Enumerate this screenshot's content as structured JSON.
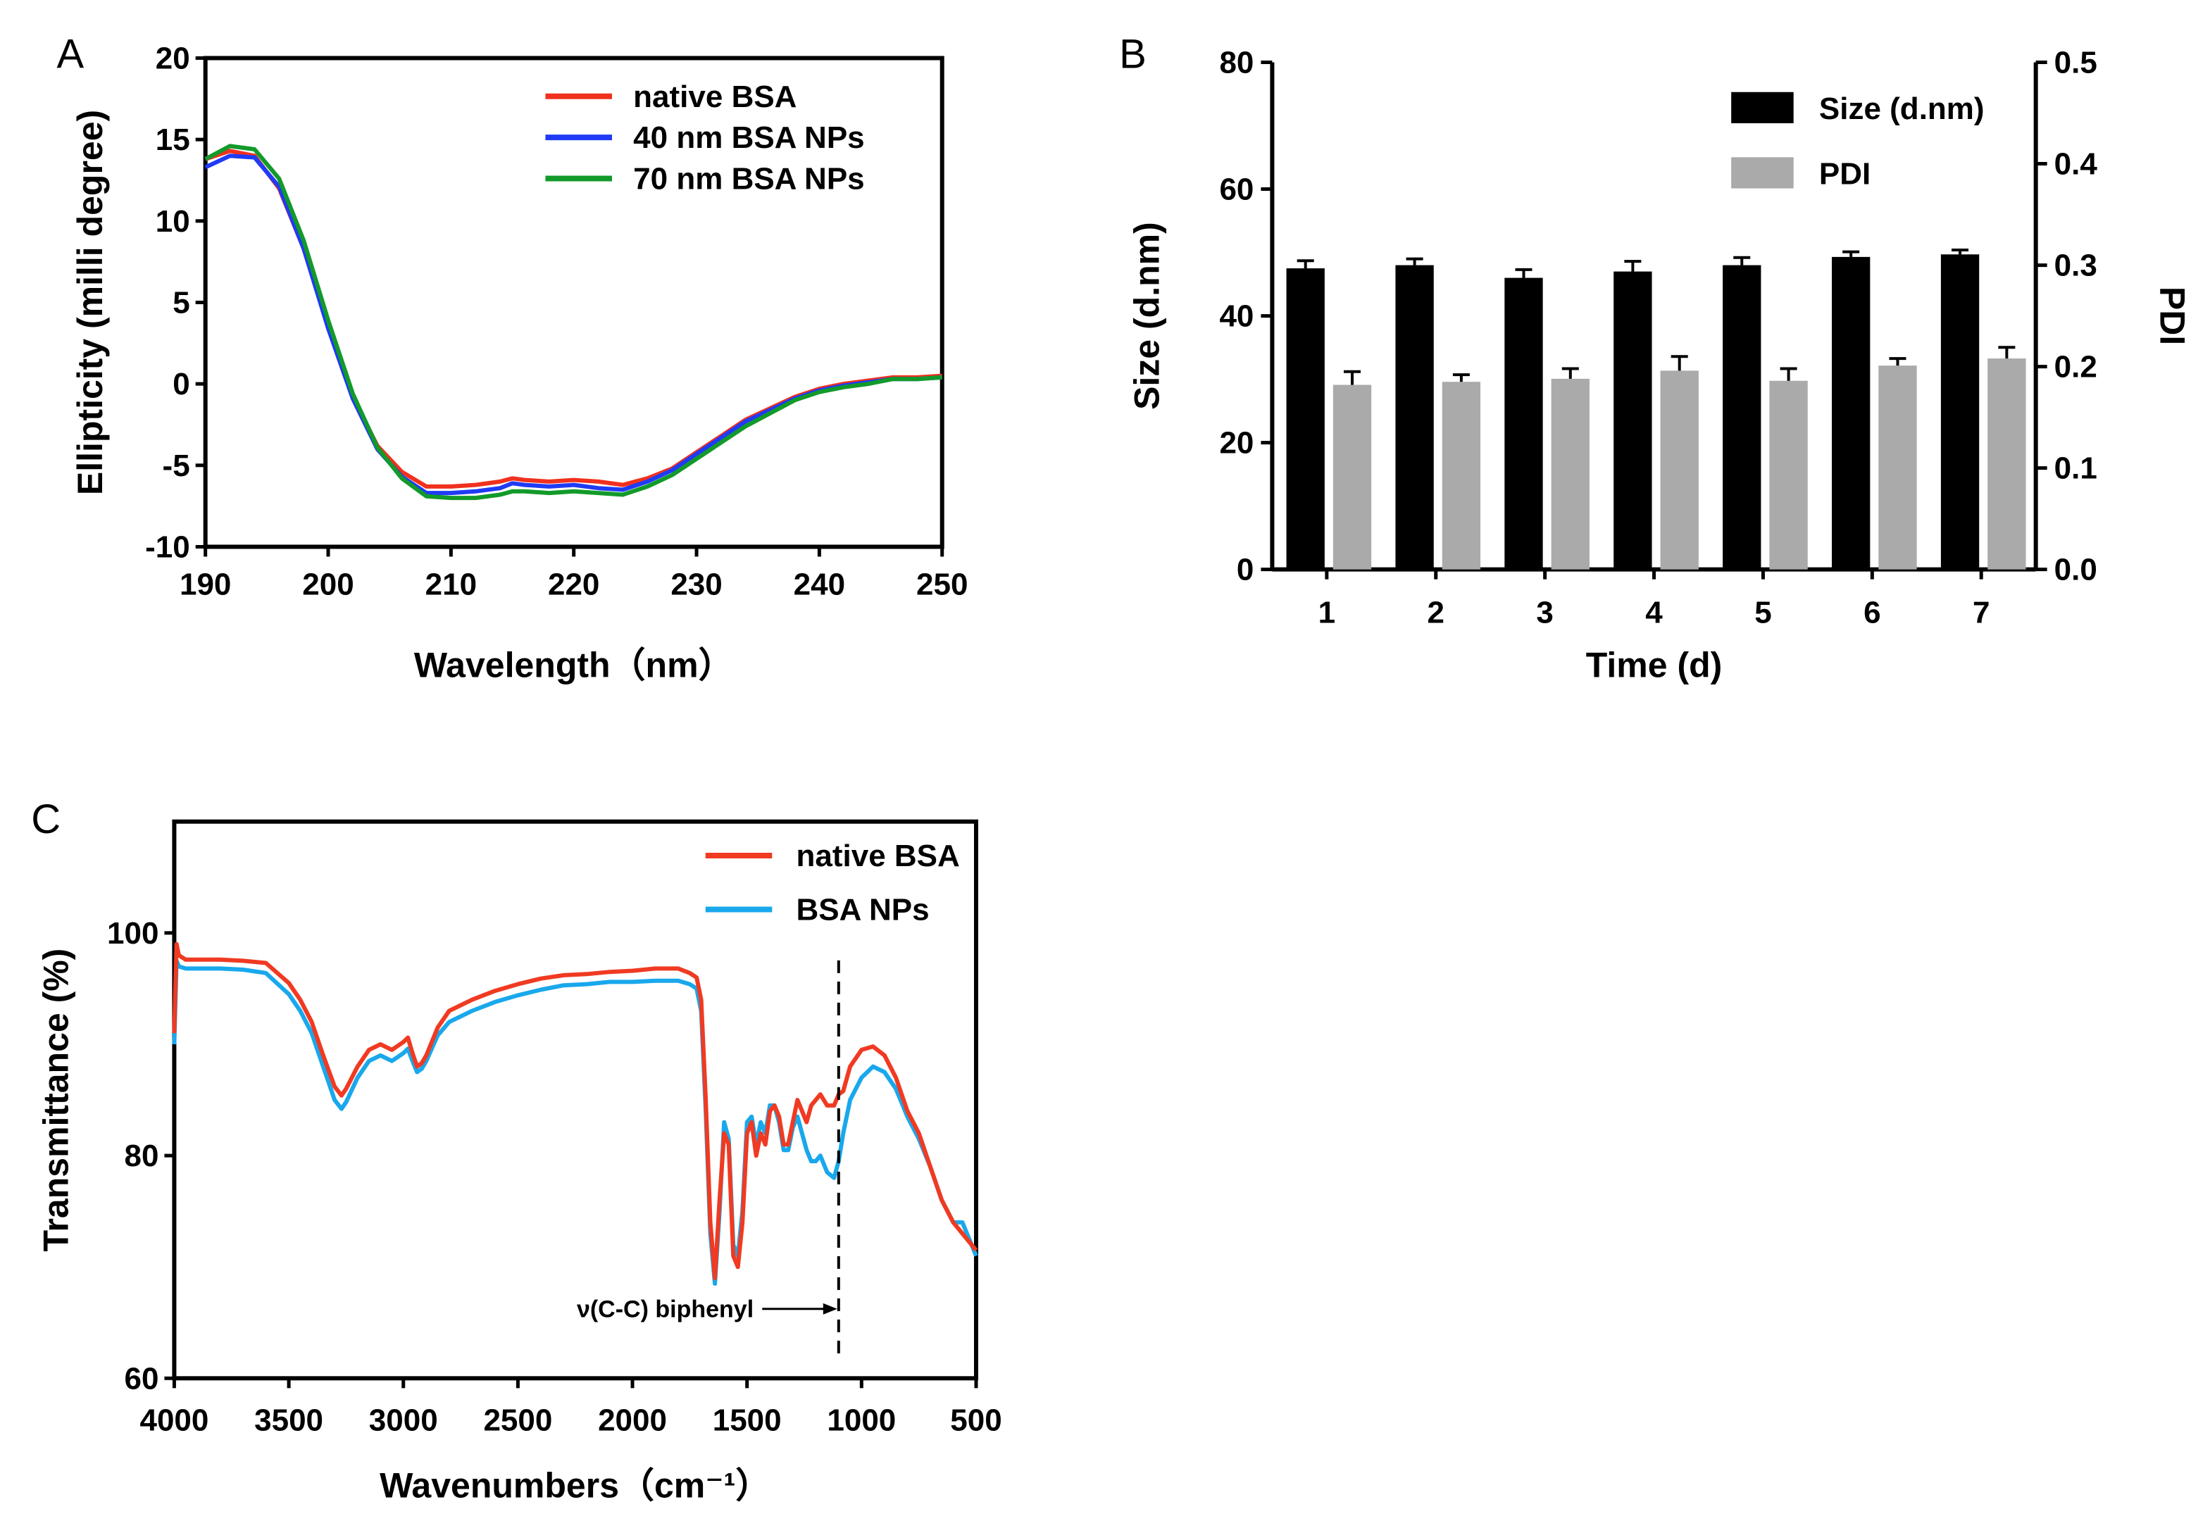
{
  "chart_data": [
    {
      "panel_label": "A",
      "type": "line",
      "xlabel": "Wavelength（nm）",
      "ylabel": "Ellipticity (milli degree)",
      "xlim": [
        190,
        250
      ],
      "ylim": [
        -10,
        20
      ],
      "xticks": [
        190,
        200,
        210,
        220,
        230,
        240,
        250
      ],
      "yticks": [
        -10,
        -5,
        0,
        5,
        10,
        15,
        20
      ],
      "legend_position": "top-right",
      "series": [
        {
          "name": "native BSA",
          "color": "#f0311e",
          "x": [
            190,
            192,
            194,
            196,
            198,
            200,
            202,
            204,
            206,
            208,
            210,
            212,
            214,
            215,
            216,
            218,
            220,
            222,
            224,
            226,
            228,
            230,
            232,
            234,
            236,
            238,
            240,
            242,
            244,
            246,
            248,
            250
          ],
          "y": [
            13.8,
            14.3,
            14.0,
            12.0,
            8.3,
            3.5,
            -0.8,
            -3.8,
            -5.4,
            -6.3,
            -6.3,
            -6.2,
            -6.0,
            -5.8,
            -5.9,
            -6.0,
            -5.9,
            -6.0,
            -6.2,
            -5.8,
            -5.2,
            -4.2,
            -3.2,
            -2.2,
            -1.5,
            -0.8,
            -0.3,
            0.0,
            0.2,
            0.4,
            0.4,
            0.5
          ]
        },
        {
          "name": "40 nm BSA NPs",
          "color": "#1f3bf5",
          "x": [
            190,
            192,
            194,
            196,
            198,
            200,
            202,
            204,
            206,
            208,
            210,
            212,
            214,
            215,
            216,
            218,
            220,
            222,
            224,
            226,
            228,
            230,
            232,
            234,
            236,
            238,
            240,
            242,
            244,
            246,
            248,
            250
          ],
          "y": [
            13.3,
            14.0,
            13.9,
            12.1,
            8.3,
            3.4,
            -0.9,
            -4.0,
            -5.7,
            -6.7,
            -6.7,
            -6.6,
            -6.4,
            -6.1,
            -6.2,
            -6.3,
            -6.2,
            -6.4,
            -6.5,
            -6.0,
            -5.3,
            -4.3,
            -3.3,
            -2.3,
            -1.6,
            -0.9,
            -0.4,
            -0.1,
            0.1,
            0.3,
            0.3,
            0.4
          ]
        },
        {
          "name": "70 nm BSA NPs",
          "color": "#129a2a",
          "x": [
            190,
            192,
            194,
            196,
            198,
            200,
            202,
            204,
            206,
            208,
            210,
            212,
            214,
            215,
            216,
            218,
            220,
            222,
            224,
            226,
            228,
            230,
            232,
            234,
            236,
            238,
            240,
            242,
            244,
            246,
            248,
            250
          ],
          "y": [
            13.8,
            14.6,
            14.4,
            12.6,
            8.8,
            3.9,
            -0.6,
            -3.9,
            -5.8,
            -6.9,
            -7.0,
            -7.0,
            -6.8,
            -6.6,
            -6.6,
            -6.7,
            -6.6,
            -6.7,
            -6.8,
            -6.3,
            -5.6,
            -4.6,
            -3.6,
            -2.6,
            -1.8,
            -1.0,
            -0.5,
            -0.2,
            0.0,
            0.3,
            0.3,
            0.4
          ]
        }
      ]
    },
    {
      "panel_label": "B",
      "type": "bar",
      "xlabel": "Time (d)",
      "ylabel": "Size (d.nm)",
      "y2label": "PDI",
      "categories": [
        "1",
        "2",
        "3",
        "4",
        "5",
        "6",
        "7"
      ],
      "ylim": [
        0,
        80
      ],
      "yticks": [
        0,
        20,
        40,
        60,
        80
      ],
      "y2lim": [
        0.0,
        0.5
      ],
      "y2ticks": [
        "0.0",
        "0.1",
        "0.2",
        "0.3",
        "0.4",
        "0.5"
      ],
      "legend_position": "top-right",
      "series": [
        {
          "name": "Size (d.nm)",
          "axis": "left",
          "color": "#000000",
          "values": [
            47.5,
            48.0,
            46.0,
            47.0,
            48.0,
            49.3,
            49.7
          ],
          "errors": [
            1.2,
            1.0,
            1.3,
            1.6,
            1.2,
            0.8,
            0.7
          ]
        },
        {
          "name": "PDI",
          "axis": "right",
          "color": "#aaaaaa",
          "values": [
            0.182,
            0.185,
            0.188,
            0.196,
            0.186,
            0.201,
            0.208
          ],
          "errors": [
            0.013,
            0.007,
            0.01,
            0.014,
            0.012,
            0.007,
            0.011
          ]
        }
      ]
    },
    {
      "panel_label": "C",
      "type": "line",
      "xlabel": "Wavenumbers（cm⁻¹）",
      "ylabel": "Transmittance (%)",
      "xlim": [
        4000,
        500
      ],
      "ylim": [
        60,
        110
      ],
      "xticks": [
        4000,
        3500,
        3000,
        2500,
        2000,
        1500,
        1000,
        500
      ],
      "yticks": [
        60,
        80,
        100
      ],
      "legend_position": "top-right",
      "annotation": {
        "text": "ν(C-C) biphenyl",
        "x": 1100
      },
      "series": [
        {
          "name": "native BSA",
          "color": "#f03a22",
          "x": [
            4000,
            3990,
            3980,
            3950,
            3900,
            3800,
            3700,
            3600,
            3500,
            3450,
            3400,
            3350,
            3300,
            3270,
            3250,
            3200,
            3150,
            3100,
            3050,
            3000,
            2980,
            2960,
            2940,
            2920,
            2900,
            2850,
            2800,
            2700,
            2600,
            2500,
            2400,
            2300,
            2200,
            2100,
            2000,
            1900,
            1800,
            1750,
            1720,
            1700,
            1680,
            1660,
            1640,
            1620,
            1600,
            1580,
            1560,
            1540,
            1520,
            1500,
            1480,
            1460,
            1440,
            1420,
            1400,
            1380,
            1360,
            1340,
            1320,
            1300,
            1280,
            1260,
            1240,
            1220,
            1200,
            1180,
            1150,
            1120,
            1100,
            1080,
            1050,
            1000,
            950,
            900,
            850,
            800,
            750,
            700,
            650,
            600,
            560,
            500
          ],
          "y": [
            91,
            99,
            98,
            97.6,
            97.6,
            97.6,
            97.5,
            97.3,
            95.5,
            94,
            92,
            89,
            86.2,
            85.4,
            86,
            88,
            89.5,
            90,
            89.5,
            90.2,
            90.6,
            89.2,
            88,
            88.3,
            89,
            91.5,
            93,
            94,
            94.8,
            95.4,
            95.9,
            96.2,
            96.3,
            96.5,
            96.6,
            96.8,
            96.8,
            96.4,
            96.0,
            94,
            85,
            74,
            69,
            76,
            82,
            81,
            71,
            70,
            74,
            82,
            83,
            80,
            82,
            81,
            84,
            84.5,
            83.5,
            81,
            81,
            83,
            85,
            84,
            83,
            84.5,
            85,
            85.5,
            84.5,
            84.5,
            85.5,
            85.8,
            88,
            89.5,
            89.8,
            89,
            87,
            84,
            82,
            79,
            76,
            74,
            73,
            71.5
          ]
        },
        {
          "name": "BSA NPs",
          "color": "#19a8ec",
          "x": [
            4000,
            3990,
            3980,
            3950,
            3900,
            3800,
            3700,
            3600,
            3500,
            3450,
            3400,
            3350,
            3300,
            3270,
            3250,
            3200,
            3150,
            3100,
            3050,
            3000,
            2980,
            2960,
            2940,
            2920,
            2900,
            2850,
            2800,
            2700,
            2600,
            2500,
            2400,
            2300,
            2200,
            2100,
            2000,
            1900,
            1800,
            1750,
            1720,
            1700,
            1680,
            1660,
            1640,
            1620,
            1600,
            1580,
            1560,
            1540,
            1520,
            1500,
            1480,
            1460,
            1440,
            1420,
            1400,
            1380,
            1360,
            1340,
            1320,
            1300,
            1280,
            1260,
            1240,
            1220,
            1200,
            1180,
            1150,
            1120,
            1100,
            1080,
            1050,
            1000,
            950,
            900,
            850,
            800,
            750,
            700,
            650,
            600,
            560,
            500
          ],
          "y": [
            90,
            97.5,
            97,
            96.8,
            96.8,
            96.8,
            96.7,
            96.4,
            94.5,
            93,
            91,
            88,
            85,
            84.2,
            84.8,
            87,
            88.5,
            89,
            88.5,
            89.2,
            89.6,
            88.5,
            87.5,
            87.8,
            88.5,
            90.8,
            92,
            93,
            93.8,
            94.4,
            94.9,
            95.3,
            95.4,
            95.6,
            95.6,
            95.7,
            95.7,
            95.4,
            95.0,
            93,
            84,
            73,
            68.5,
            75,
            83,
            81.5,
            72,
            71,
            75,
            83,
            83.5,
            81,
            83,
            82,
            84.5,
            84.5,
            83,
            80.5,
            80.5,
            82.5,
            83.5,
            82,
            80.5,
            79.5,
            79.5,
            80,
            78.5,
            78,
            79.5,
            82,
            85,
            87,
            88,
            87.5,
            86,
            83.5,
            81.5,
            79,
            76,
            74,
            74,
            71
          ]
        }
      ]
    }
  ]
}
